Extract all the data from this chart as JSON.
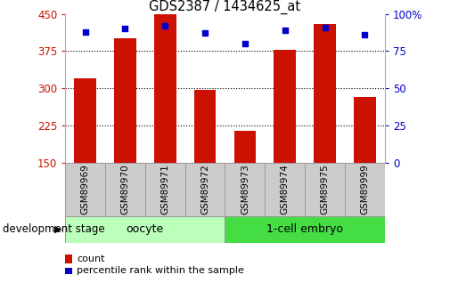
{
  "title": "GDS2387 / 1434625_at",
  "samples": [
    "GSM89969",
    "GSM89970",
    "GSM89971",
    "GSM89972",
    "GSM89973",
    "GSM89974",
    "GSM89975",
    "GSM89999"
  ],
  "counts": [
    320,
    400,
    450,
    297,
    215,
    378,
    430,
    283
  ],
  "percentiles": [
    88,
    90,
    92,
    87,
    80,
    89,
    91,
    86
  ],
  "bar_color": "#cc1100",
  "dot_color": "#0000cc",
  "ylim_left": [
    150,
    450
  ],
  "ylim_right": [
    0,
    100
  ],
  "yticks_left": [
    150,
    225,
    300,
    375,
    450
  ],
  "yticks_right": [
    0,
    25,
    50,
    75,
    100
  ],
  "ytick_labels_right": [
    "0",
    "25",
    "50",
    "75",
    "100%"
  ],
  "group_oocyte_label": "oocyte",
  "group_oocyte_color": "#bbffbb",
  "group_embryo_label": "1-cell embryo",
  "group_embryo_color": "#44dd44",
  "xlabel_area": "development stage",
  "legend_count_label": "count",
  "legend_pct_label": "percentile rank within the sample",
  "bg_color": "#ffffff",
  "tick_color_left": "#cc1100",
  "tick_color_right": "#0000cc",
  "label_box_color": "#cccccc",
  "grid_dotted_color": "#000000"
}
